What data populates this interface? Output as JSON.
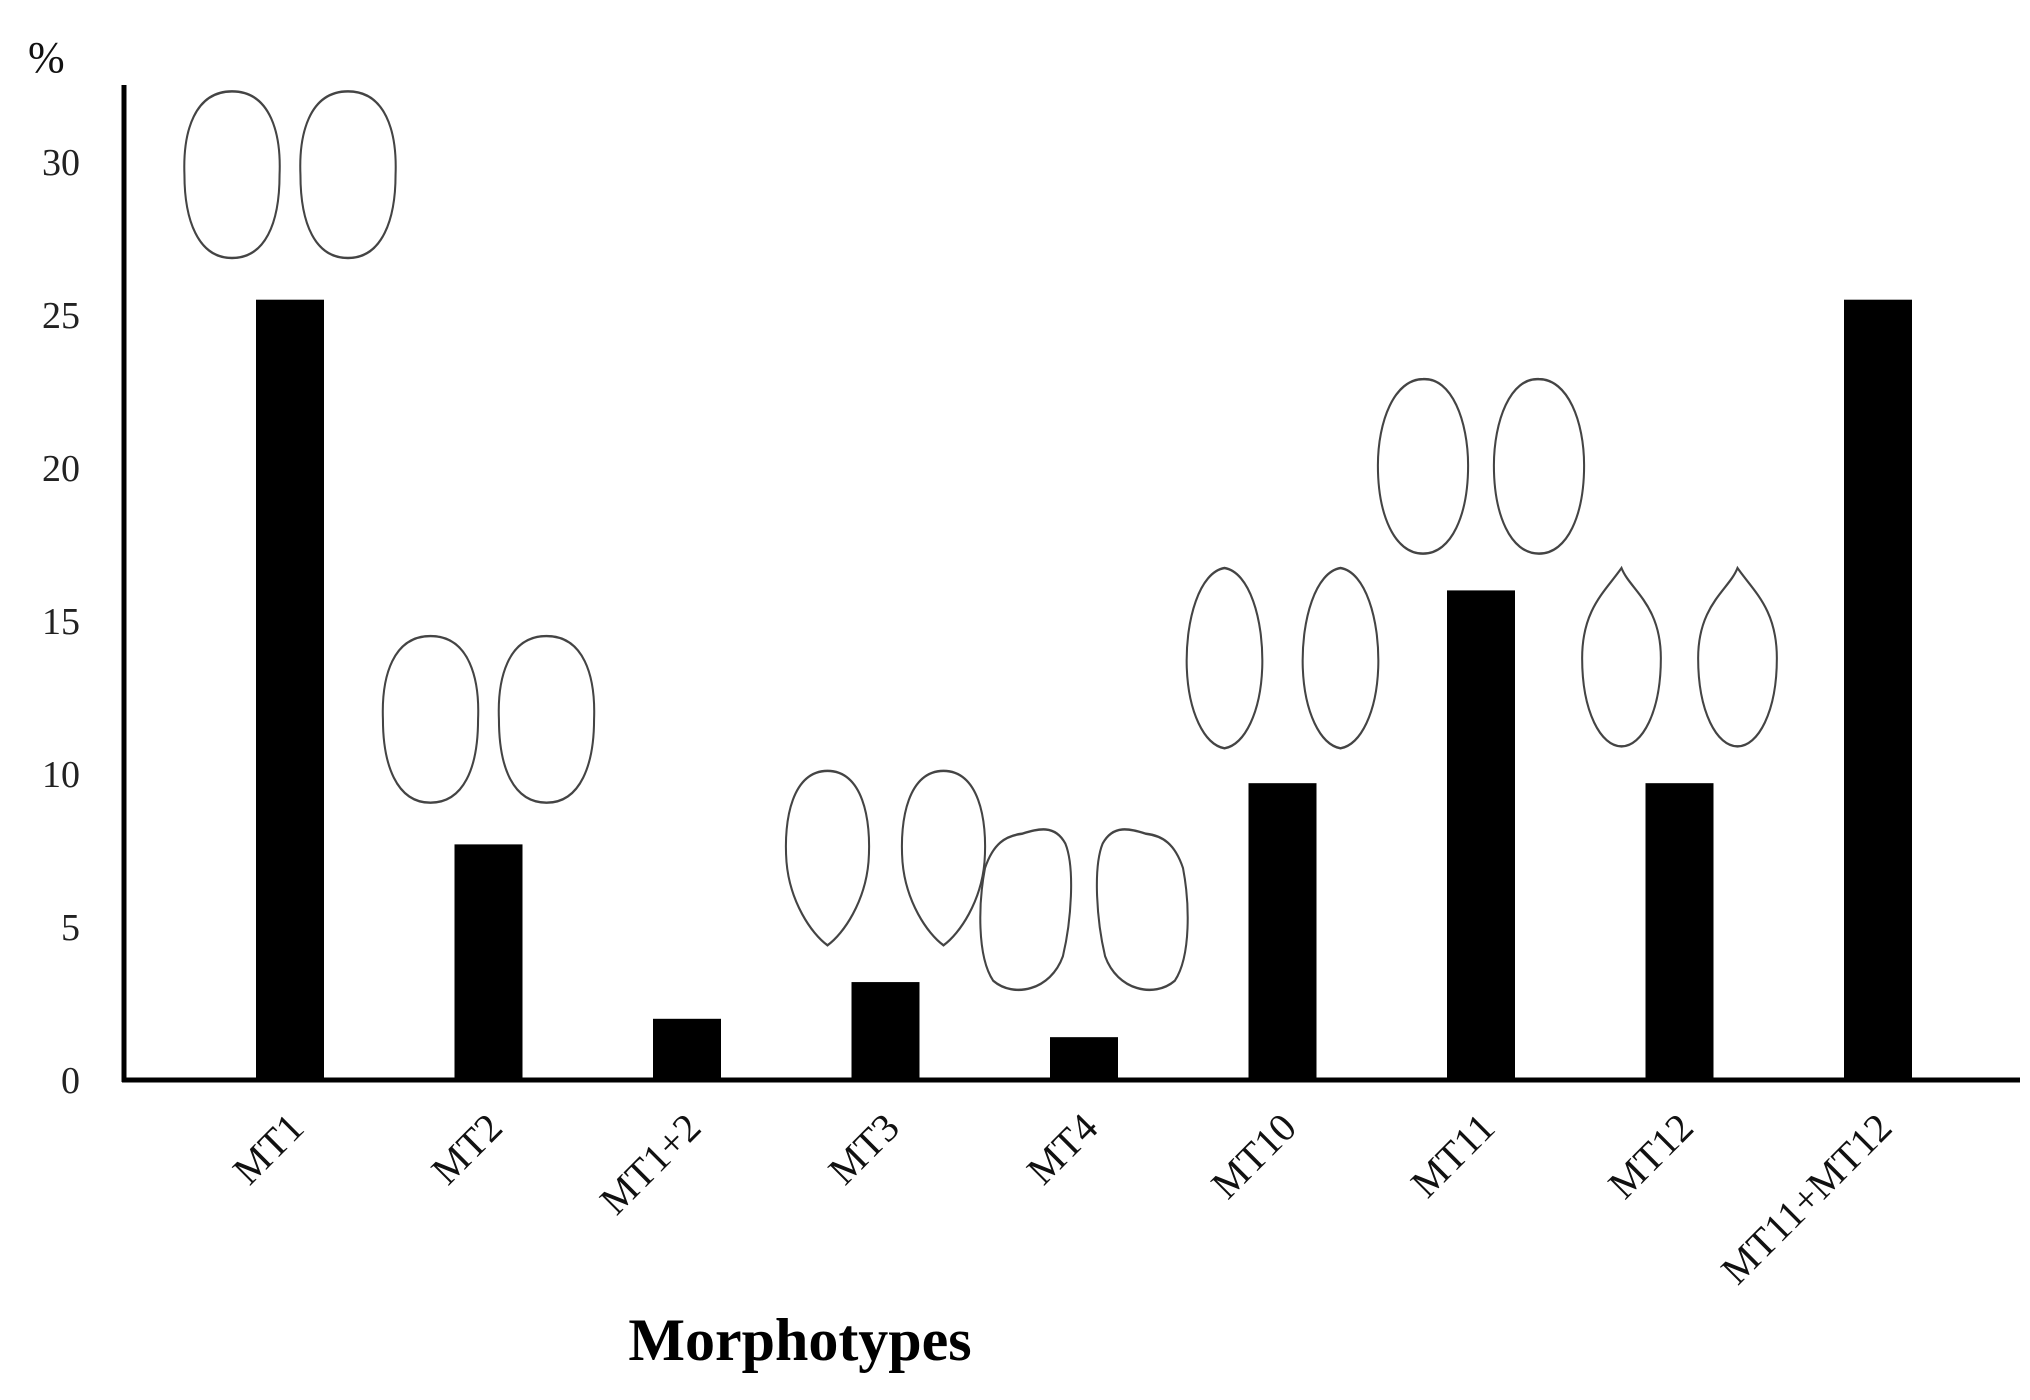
{
  "chart_data": {
    "type": "bar",
    "title": "",
    "ylabel": "%",
    "xlabel": "Morphotypes",
    "ylim": [
      0,
      32
    ],
    "yticks": [
      0,
      5,
      10,
      15,
      20,
      25,
      30
    ],
    "grid": false,
    "legend": "none",
    "bar_color": "#000000",
    "categories": [
      "MT1",
      "MT2",
      "MT1+2",
      "MT3",
      "MT4",
      "MT10",
      "MT11",
      "MT12",
      "MT11+MT12"
    ],
    "values": [
      25.5,
      7.7,
      2.0,
      3.2,
      1.4,
      9.7,
      16.0,
      9.7,
      25.5
    ],
    "annotations": [
      {
        "category": "MT1",
        "icon": "seed-outline-pair-icon",
        "shape": "round"
      },
      {
        "category": "MT2",
        "icon": "seed-outline-pair-icon",
        "shape": "round"
      },
      {
        "category": "MT3",
        "icon": "seed-outline-pair-icon",
        "shape": "pointed-base"
      },
      {
        "category": "MT4",
        "icon": "seed-outline-pair-icon",
        "shape": "angular-top"
      },
      {
        "category": "MT10",
        "icon": "seed-outline-pair-icon",
        "shape": "elongated"
      },
      {
        "category": "MT11",
        "icon": "seed-outline-pair-icon",
        "shape": "oval"
      },
      {
        "category": "MT12",
        "icon": "seed-outline-pair-icon",
        "shape": "pointed-apex"
      }
    ]
  }
}
